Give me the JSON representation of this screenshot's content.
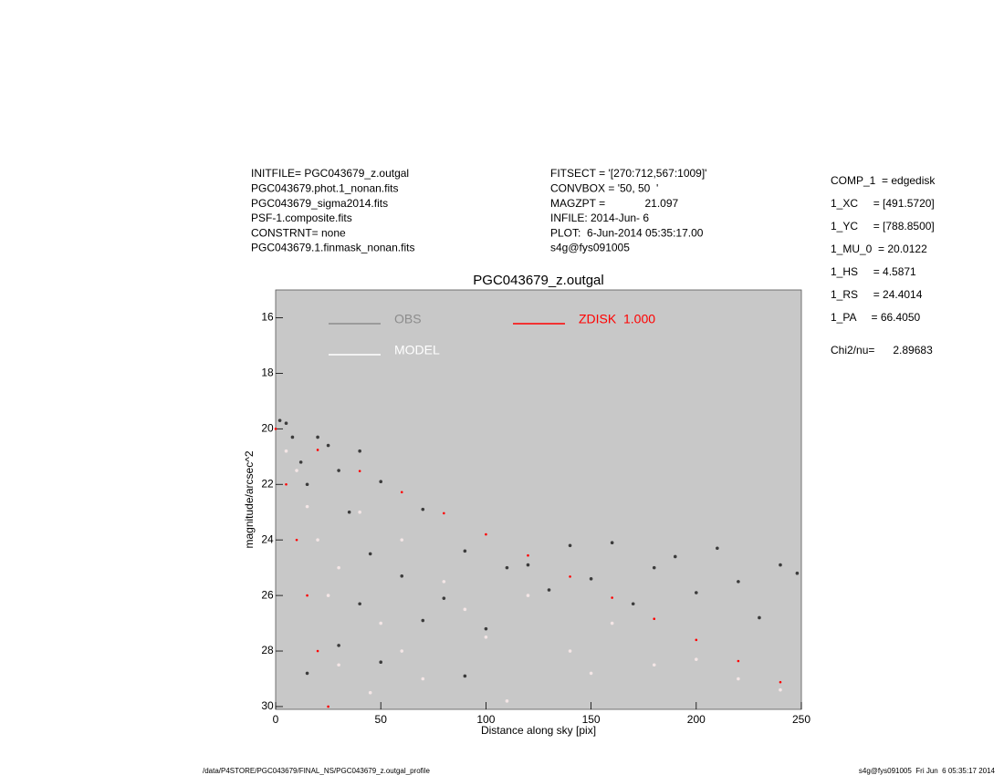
{
  "info": {
    "left": [
      "INITFILE= PGC043679_z.outgal",
      "PGC043679.phot.1_nonan.fits",
      "PGC043679_sigma2014.fits",
      "PSF-1.composite.fits",
      "CONSTRNT= none",
      "PGC043679.1.finmask_nonan.fits"
    ],
    "middle": [
      "FITSECT = '[270:712,567:1009]'",
      "CONVBOX = '50, 50  '",
      "MAGZPT =             21.097",
      "INFILE: 2014-Jun- 6",
      "PLOT:  6-Jun-2014 05:35:17.00",
      "s4g@fys091005"
    ],
    "params": [
      "COMP_1  = edgedisk",
      "1_XC     = [491.5720]",
      "1_YC     = [788.8500]",
      "1_MU_0  = 20.0122",
      "1_HS     = 4.5871",
      "1_RS     = 24.4014",
      "1_PA     = 66.4050"
    ],
    "chi": "Chi2/nu=      2.89683",
    "footer_left": "/data/P4STORE/PGC043679/FINAL_NS/PGC043679_z.outgal_profile",
    "footer_right": "s4g@fys091005  Fri Jun  6 05:35:17 2014"
  },
  "chart_data": {
    "type": "scatter",
    "title": "PGC043679_z.outgal",
    "x_label": "Distance along sky [pix]",
    "y_label": "magnitude/arcsec^2",
    "xlim": [
      0,
      250
    ],
    "xticks": [
      0,
      50,
      100,
      150,
      200,
      250
    ],
    "ylim": [
      15,
      30.1
    ],
    "y_inverted": true,
    "yticks": [
      16,
      18,
      20,
      22,
      24,
      26,
      28,
      30
    ],
    "background": "#c8c8c8",
    "series": [
      {
        "name": "OBS",
        "color": "#3c3c3c",
        "legend_color": "#8c8c8c",
        "x": [
          2,
          5,
          8,
          12,
          15,
          20,
          25,
          30,
          35,
          40,
          45,
          50,
          60,
          70,
          80,
          90,
          100,
          110,
          120,
          130,
          140,
          150,
          160,
          170,
          180,
          190,
          200,
          210,
          220,
          230,
          240,
          248,
          30,
          50,
          70,
          90,
          15,
          40
        ],
        "values": [
          19.7,
          19.8,
          20.3,
          21.2,
          22.0,
          20.3,
          20.6,
          21.5,
          23.0,
          20.8,
          24.5,
          21.9,
          25.3,
          22.9,
          26.1,
          24.4,
          27.2,
          25.0,
          24.9,
          25.8,
          24.2,
          25.4,
          24.1,
          26.3,
          25.0,
          24.6,
          25.9,
          24.3,
          25.5,
          26.8,
          24.9,
          25.2,
          27.8,
          28.4,
          26.9,
          28.9,
          28.8,
          26.3
        ]
      },
      {
        "name": "MODEL",
        "color": "#f4e6e6",
        "legend_color": "#ffffff",
        "x": [
          5,
          10,
          15,
          20,
          25,
          30,
          40,
          50,
          60,
          70,
          80,
          100,
          120,
          140,
          160,
          180,
          200,
          220,
          240,
          30,
          45,
          60,
          90,
          110,
          150
        ],
        "values": [
          20.8,
          21.5,
          22.8,
          24.0,
          26.0,
          28.5,
          23.0,
          27.0,
          24.0,
          29.0,
          25.5,
          27.5,
          26.0,
          28.0,
          27.0,
          28.5,
          28.3,
          29.0,
          29.4,
          25.0,
          29.5,
          28.0,
          26.5,
          29.8,
          28.8
        ]
      },
      {
        "name": "ZDISK  1.000",
        "color": "#ff0000",
        "legend_color": "#ff0000",
        "x": [
          0,
          20,
          40,
          60,
          80,
          100,
          120,
          140,
          160,
          180,
          200,
          220,
          240,
          5,
          10,
          15,
          20,
          25
        ],
        "values": [
          20,
          20.76,
          21.52,
          22.28,
          23.04,
          23.8,
          24.56,
          25.32,
          26.08,
          26.84,
          27.6,
          28.36,
          29.12,
          22,
          24,
          26,
          28,
          30
        ]
      }
    ]
  }
}
